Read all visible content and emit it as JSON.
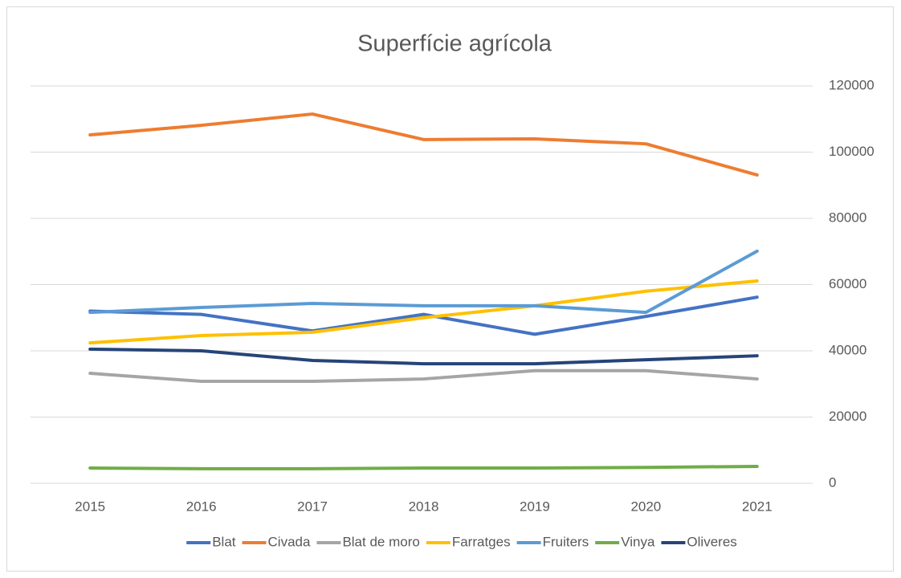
{
  "chart_data": {
    "type": "line",
    "title": "Superfície agrícola",
    "categories": [
      "2015",
      "2016",
      "2017",
      "2018",
      "2019",
      "2020",
      "2021"
    ],
    "series": [
      {
        "name": "Blat",
        "color": "#4472c4",
        "values": [
          52000,
          51000,
          46000,
          51000,
          45000,
          50400,
          56200
        ]
      },
      {
        "name": "Civada",
        "color": "#ed7d31",
        "values": [
          105200,
          108100,
          111500,
          103800,
          104000,
          102500,
          93100
        ]
      },
      {
        "name": "Blat de moro",
        "color": "#a5a5a5",
        "values": [
          33200,
          30800,
          30800,
          31500,
          34000,
          34000,
          31500
        ]
      },
      {
        "name": "Farratges",
        "color": "#ffc000",
        "values": [
          42400,
          44600,
          45600,
          50000,
          53600,
          58000,
          61100
        ]
      },
      {
        "name": "Fruiters",
        "color": "#5b9bd5",
        "values": [
          51600,
          53100,
          54300,
          53600,
          53600,
          51600,
          70100
        ]
      },
      {
        "name": "Vinya",
        "color": "#70ad47",
        "values": [
          4600,
          4400,
          4400,
          4600,
          4600,
          4800,
          5100
        ]
      },
      {
        "name": "Oliveres",
        "color": "#264478",
        "values": [
          40500,
          40000,
          37100,
          36100,
          36100,
          37300,
          38500
        ]
      }
    ],
    "ylim": [
      0,
      120000
    ],
    "yticks": [
      0,
      20000,
      40000,
      60000,
      80000,
      100000,
      120000
    ],
    "grid": true,
    "legend": "bottom"
  }
}
